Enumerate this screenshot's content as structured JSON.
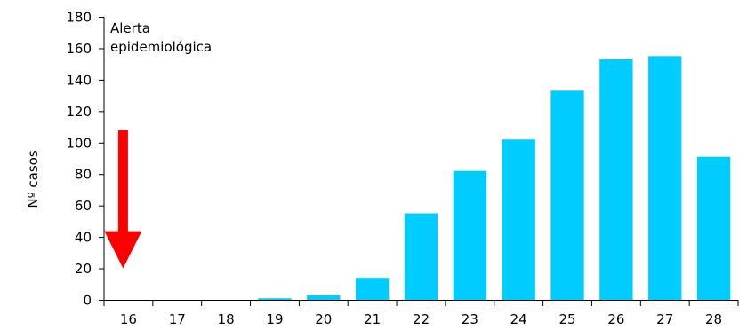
{
  "chart_data": {
    "type": "bar",
    "categories": [
      "16",
      "17",
      "18",
      "19",
      "20",
      "21",
      "22",
      "23",
      "24",
      "25",
      "26",
      "27",
      "28"
    ],
    "values": [
      0,
      0,
      0,
      1,
      3,
      14,
      55,
      82,
      102,
      133,
      153,
      155,
      91
    ],
    "title": "",
    "xlabel": "",
    "ylabel": "Nº casos",
    "ylim": [
      0,
      180
    ],
    "yticks": [
      "0",
      "20",
      "40",
      "60",
      "80",
      "100",
      "120",
      "140",
      "160",
      "180"
    ],
    "grid": false,
    "bar_color": "#00CCFF",
    "annotation": {
      "lines": [
        "Alerta",
        "epidemiológica"
      ],
      "category": "16",
      "arrow": {
        "color": "#FF0000",
        "direction": "down",
        "from_value": 108,
        "to_value": 20
      }
    }
  }
}
